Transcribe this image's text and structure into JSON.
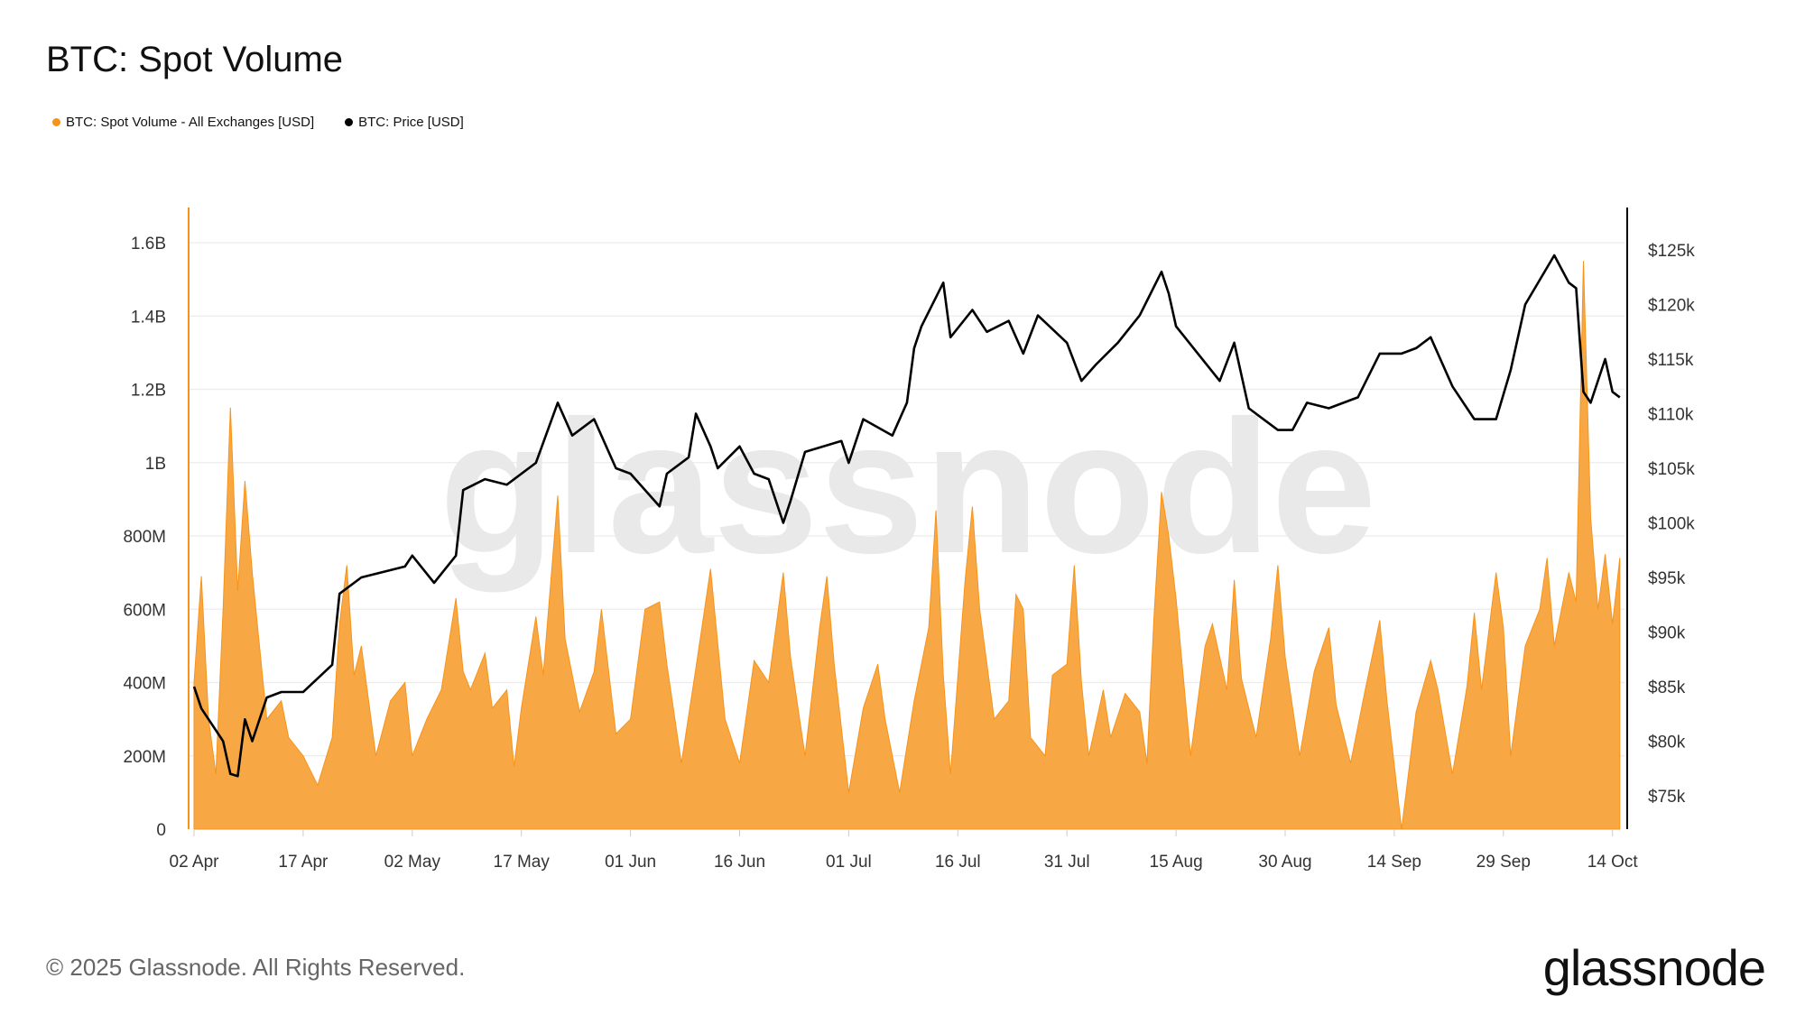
{
  "title": "BTC: Spot Volume",
  "footer": "© 2025 Glassnode. All Rights Reserved.",
  "logo": "glassnode",
  "watermark": "glassnode",
  "colors": {
    "volume": "#f7931a",
    "volume_fill": "#f7a845",
    "price": "#000000",
    "grid": "#ececec"
  },
  "chart_data": {
    "type": "area+line",
    "title": "BTC: Spot Volume",
    "legend_position": "top-left",
    "grid": true,
    "legend": [
      {
        "name": "BTC: Spot Volume - All Exchanges [USD]",
        "color": "#f7931a"
      },
      {
        "name": "BTC: Price [USD]",
        "color": "#000000"
      }
    ],
    "x_range": [
      "2025-04-02",
      "2025-10-15"
    ],
    "x_ticks": [
      "02 Apr",
      "17 Apr",
      "02 May",
      "17 May",
      "01 Jun",
      "16 Jun",
      "01 Jul",
      "16 Jul",
      "31 Jul",
      "15 Aug",
      "30 Aug",
      "14 Sep",
      "29 Sep",
      "14 Oct"
    ],
    "x_tick_dates": [
      "2025-04-02",
      "2025-04-17",
      "2025-05-02",
      "2025-05-17",
      "2025-06-01",
      "2025-06-16",
      "2025-07-01",
      "2025-07-16",
      "2025-07-31",
      "2025-08-15",
      "2025-08-30",
      "2025-09-14",
      "2025-09-29",
      "2025-10-14"
    ],
    "y_left": {
      "range": [
        0,
        1700000000
      ],
      "ticks": [
        "0",
        "200M",
        "400M",
        "600M",
        "800M",
        "1B",
        "1.2B",
        "1.4B",
        "1.6B"
      ],
      "tick_values": [
        0,
        200000000,
        400000000,
        600000000,
        800000000,
        1000000000,
        1200000000,
        1400000000,
        1600000000
      ]
    },
    "y_right": {
      "range": [
        72000,
        129000
      ],
      "ticks": [
        "$75k",
        "$80k",
        "$85k",
        "$90k",
        "$95k",
        "$100k",
        "$105k",
        "$110k",
        "$115k",
        "$120k",
        "$125k"
      ],
      "tick_values": [
        75000,
        80000,
        85000,
        90000,
        95000,
        100000,
        105000,
        110000,
        115000,
        120000,
        125000
      ]
    },
    "series": [
      {
        "name": "BTC: Spot Volume - All Exchanges [USD]",
        "axis": "left",
        "type": "area",
        "points": [
          [
            "2025-04-02",
            400000000.0
          ],
          [
            "2025-04-03",
            690000000.0
          ],
          [
            "2025-04-04",
            300000000.0
          ],
          [
            "2025-04-05",
            150000000.0
          ],
          [
            "2025-04-06",
            600000000.0
          ],
          [
            "2025-04-07",
            1150000000.0
          ],
          [
            "2025-04-08",
            650000000.0
          ],
          [
            "2025-04-09",
            950000000.0
          ],
          [
            "2025-04-10",
            700000000.0
          ],
          [
            "2025-04-11",
            500000000.0
          ],
          [
            "2025-04-12",
            300000000.0
          ],
          [
            "2025-04-14",
            350000000.0
          ],
          [
            "2025-04-15",
            250000000.0
          ],
          [
            "2025-04-17",
            200000000.0
          ],
          [
            "2025-04-19",
            120000000.0
          ],
          [
            "2025-04-21",
            250000000.0
          ],
          [
            "2025-04-22",
            560000000.0
          ],
          [
            "2025-04-23",
            720000000.0
          ],
          [
            "2025-04-24",
            420000000.0
          ],
          [
            "2025-04-25",
            500000000.0
          ],
          [
            "2025-04-27",
            200000000.0
          ],
          [
            "2025-04-29",
            350000000.0
          ],
          [
            "2025-05-01",
            400000000.0
          ],
          [
            "2025-05-02",
            200000000.0
          ],
          [
            "2025-05-04",
            300000000.0
          ],
          [
            "2025-05-06",
            380000000.0
          ],
          [
            "2025-05-08",
            630000000.0
          ],
          [
            "2025-05-09",
            430000000.0
          ],
          [
            "2025-05-10",
            380000000.0
          ],
          [
            "2025-05-12",
            480000000.0
          ],
          [
            "2025-05-13",
            330000000.0
          ],
          [
            "2025-05-15",
            380000000.0
          ],
          [
            "2025-05-16",
            170000000.0
          ],
          [
            "2025-05-17",
            330000000.0
          ],
          [
            "2025-05-19",
            580000000.0
          ],
          [
            "2025-05-20",
            420000000.0
          ],
          [
            "2025-05-22",
            910000000.0
          ],
          [
            "2025-05-23",
            520000000.0
          ],
          [
            "2025-05-25",
            320000000.0
          ],
          [
            "2025-05-27",
            430000000.0
          ],
          [
            "2025-05-28",
            600000000.0
          ],
          [
            "2025-05-30",
            260000000.0
          ],
          [
            "2025-06-01",
            300000000.0
          ],
          [
            "2025-06-03",
            600000000.0
          ],
          [
            "2025-06-05",
            620000000.0
          ],
          [
            "2025-06-06",
            450000000.0
          ],
          [
            "2025-06-08",
            180000000.0
          ],
          [
            "2025-06-10",
            440000000.0
          ],
          [
            "2025-06-12",
            710000000.0
          ],
          [
            "2025-06-14",
            300000000.0
          ],
          [
            "2025-06-16",
            180000000.0
          ],
          [
            "2025-06-18",
            460000000.0
          ],
          [
            "2025-06-20",
            400000000.0
          ],
          [
            "2025-06-22",
            700000000.0
          ],
          [
            "2025-06-23",
            470000000.0
          ],
          [
            "2025-06-25",
            200000000.0
          ],
          [
            "2025-06-27",
            550000000.0
          ],
          [
            "2025-06-28",
            690000000.0
          ],
          [
            "2025-06-29",
            450000000.0
          ],
          [
            "2025-07-01",
            100000000.0
          ],
          [
            "2025-07-03",
            330000000.0
          ],
          [
            "2025-07-05",
            450000000.0
          ],
          [
            "2025-07-06",
            300000000.0
          ],
          [
            "2025-07-08",
            100000000.0
          ],
          [
            "2025-07-10",
            350000000.0
          ],
          [
            "2025-07-12",
            550000000.0
          ],
          [
            "2025-07-13",
            870000000.0
          ],
          [
            "2025-07-14",
            420000000.0
          ],
          [
            "2025-07-15",
            150000000.0
          ],
          [
            "2025-07-17",
            680000000.0
          ],
          [
            "2025-07-18",
            880000000.0
          ],
          [
            "2025-07-19",
            600000000.0
          ],
          [
            "2025-07-21",
            300000000.0
          ],
          [
            "2025-07-23",
            350000000.0
          ],
          [
            "2025-07-24",
            640000000.0
          ],
          [
            "2025-07-25",
            600000000.0
          ],
          [
            "2025-07-26",
            250000000.0
          ],
          [
            "2025-07-28",
            200000000.0
          ],
          [
            "2025-07-29",
            420000000.0
          ],
          [
            "2025-07-31",
            450000000.0
          ],
          [
            "2025-08-01",
            720000000.0
          ],
          [
            "2025-08-02",
            400000000.0
          ],
          [
            "2025-08-03",
            200000000.0
          ],
          [
            "2025-08-05",
            380000000.0
          ],
          [
            "2025-08-06",
            250000000.0
          ],
          [
            "2025-08-08",
            370000000.0
          ],
          [
            "2025-08-10",
            320000000.0
          ],
          [
            "2025-08-11",
            180000000.0
          ],
          [
            "2025-08-12",
            590000000.0
          ],
          [
            "2025-08-13",
            920000000.0
          ],
          [
            "2025-08-14",
            800000000.0
          ],
          [
            "2025-08-15",
            630000000.0
          ],
          [
            "2025-08-17",
            200000000.0
          ],
          [
            "2025-08-19",
            500000000.0
          ],
          [
            "2025-08-20",
            560000000.0
          ],
          [
            "2025-08-22",
            380000000.0
          ],
          [
            "2025-08-23",
            680000000.0
          ],
          [
            "2025-08-24",
            410000000.0
          ],
          [
            "2025-08-26",
            250000000.0
          ],
          [
            "2025-08-28",
            520000000.0
          ],
          [
            "2025-08-29",
            720000000.0
          ],
          [
            "2025-08-30",
            470000000.0
          ],
          [
            "2025-09-01",
            200000000.0
          ],
          [
            "2025-09-03",
            430000000.0
          ],
          [
            "2025-09-05",
            550000000.0
          ],
          [
            "2025-09-06",
            340000000.0
          ],
          [
            "2025-09-08",
            180000000.0
          ],
          [
            "2025-09-10",
            380000000.0
          ],
          [
            "2025-09-12",
            570000000.0
          ],
          [
            "2025-09-13",
            350000000.0
          ],
          [
            "2025-09-15",
            0
          ],
          [
            "2025-09-17",
            320000000.0
          ],
          [
            "2025-09-19",
            460000000.0
          ],
          [
            "2025-09-20",
            380000000.0
          ],
          [
            "2025-09-22",
            150000000.0
          ],
          [
            "2025-09-24",
            390000000.0
          ],
          [
            "2025-09-25",
            590000000.0
          ],
          [
            "2025-09-26",
            380000000.0
          ],
          [
            "2025-09-28",
            700000000.0
          ],
          [
            "2025-09-29",
            550000000.0
          ],
          [
            "2025-09-30",
            200000000.0
          ],
          [
            "2025-10-02",
            500000000.0
          ],
          [
            "2025-10-04",
            600000000.0
          ],
          [
            "2025-10-05",
            740000000.0
          ],
          [
            "2025-10-06",
            500000000.0
          ],
          [
            "2025-10-08",
            700000000.0
          ],
          [
            "2025-10-09",
            620000000.0
          ],
          [
            "2025-10-10",
            1550000000.0
          ],
          [
            "2025-10-11",
            850000000.0
          ],
          [
            "2025-10-12",
            600000000.0
          ],
          [
            "2025-10-13",
            750000000.0
          ],
          [
            "2025-10-14",
            560000000.0
          ],
          [
            "2025-10-15",
            740000000.0
          ]
        ]
      },
      {
        "name": "BTC: Price [USD]",
        "axis": "right",
        "type": "line",
        "points": [
          [
            "2025-04-02",
            85000
          ],
          [
            "2025-04-03",
            83000
          ],
          [
            "2025-04-06",
            80000
          ],
          [
            "2025-04-07",
            77000
          ],
          [
            "2025-04-08",
            76800
          ],
          [
            "2025-04-09",
            82000
          ],
          [
            "2025-04-10",
            80000
          ],
          [
            "2025-04-12",
            84000
          ],
          [
            "2025-04-14",
            84500
          ],
          [
            "2025-04-17",
            84500
          ],
          [
            "2025-04-21",
            87000
          ],
          [
            "2025-04-22",
            93500
          ],
          [
            "2025-04-25",
            95000
          ],
          [
            "2025-05-01",
            96000
          ],
          [
            "2025-05-02",
            97000
          ],
          [
            "2025-05-05",
            94500
          ],
          [
            "2025-05-08",
            97000
          ],
          [
            "2025-05-09",
            103000
          ],
          [
            "2025-05-12",
            104000
          ],
          [
            "2025-05-15",
            103500
          ],
          [
            "2025-05-19",
            105500
          ],
          [
            "2025-05-22",
            111000
          ],
          [
            "2025-05-24",
            108000
          ],
          [
            "2025-05-27",
            109500
          ],
          [
            "2025-05-30",
            105000
          ],
          [
            "2025-06-01",
            104500
          ],
          [
            "2025-06-05",
            101500
          ],
          [
            "2025-06-06",
            104500
          ],
          [
            "2025-06-09",
            106000
          ],
          [
            "2025-06-10",
            110000
          ],
          [
            "2025-06-12",
            107000
          ],
          [
            "2025-06-13",
            105000
          ],
          [
            "2025-06-16",
            107000
          ],
          [
            "2025-06-18",
            104500
          ],
          [
            "2025-06-20",
            104000
          ],
          [
            "2025-06-22",
            100000
          ],
          [
            "2025-06-23",
            102000
          ],
          [
            "2025-06-25",
            106500
          ],
          [
            "2025-06-30",
            107500
          ],
          [
            "2025-07-01",
            105500
          ],
          [
            "2025-07-03",
            109500
          ],
          [
            "2025-07-07",
            108000
          ],
          [
            "2025-07-09",
            111000
          ],
          [
            "2025-07-10",
            116000
          ],
          [
            "2025-07-11",
            118000
          ],
          [
            "2025-07-14",
            122000
          ],
          [
            "2025-07-15",
            117000
          ],
          [
            "2025-07-18",
            119500
          ],
          [
            "2025-07-20",
            117500
          ],
          [
            "2025-07-23",
            118500
          ],
          [
            "2025-07-25",
            115500
          ],
          [
            "2025-07-27",
            119000
          ],
          [
            "2025-07-31",
            116500
          ],
          [
            "2025-08-02",
            113000
          ],
          [
            "2025-08-04",
            114500
          ],
          [
            "2025-08-07",
            116500
          ],
          [
            "2025-08-10",
            119000
          ],
          [
            "2025-08-13",
            123000
          ],
          [
            "2025-08-14",
            121000
          ],
          [
            "2025-08-15",
            118000
          ],
          [
            "2025-08-18",
            115500
          ],
          [
            "2025-08-21",
            113000
          ],
          [
            "2025-08-23",
            116500
          ],
          [
            "2025-08-25",
            110500
          ],
          [
            "2025-08-29",
            108500
          ],
          [
            "2025-08-31",
            108500
          ],
          [
            "2025-09-02",
            111000
          ],
          [
            "2025-09-05",
            110500
          ],
          [
            "2025-09-09",
            111500
          ],
          [
            "2025-09-12",
            115500
          ],
          [
            "2025-09-15",
            115500
          ],
          [
            "2025-09-17",
            116000
          ],
          [
            "2025-09-19",
            117000
          ],
          [
            "2025-09-22",
            112500
          ],
          [
            "2025-09-25",
            109500
          ],
          [
            "2025-09-28",
            109500
          ],
          [
            "2025-09-30",
            114000
          ],
          [
            "2025-10-02",
            120000
          ],
          [
            "2025-10-06",
            124500
          ],
          [
            "2025-10-08",
            122000
          ],
          [
            "2025-10-09",
            121500
          ],
          [
            "2025-10-10",
            112000
          ],
          [
            "2025-10-11",
            111000
          ],
          [
            "2025-10-13",
            115000
          ],
          [
            "2025-10-14",
            112000
          ],
          [
            "2025-10-15",
            111500
          ]
        ]
      }
    ]
  }
}
